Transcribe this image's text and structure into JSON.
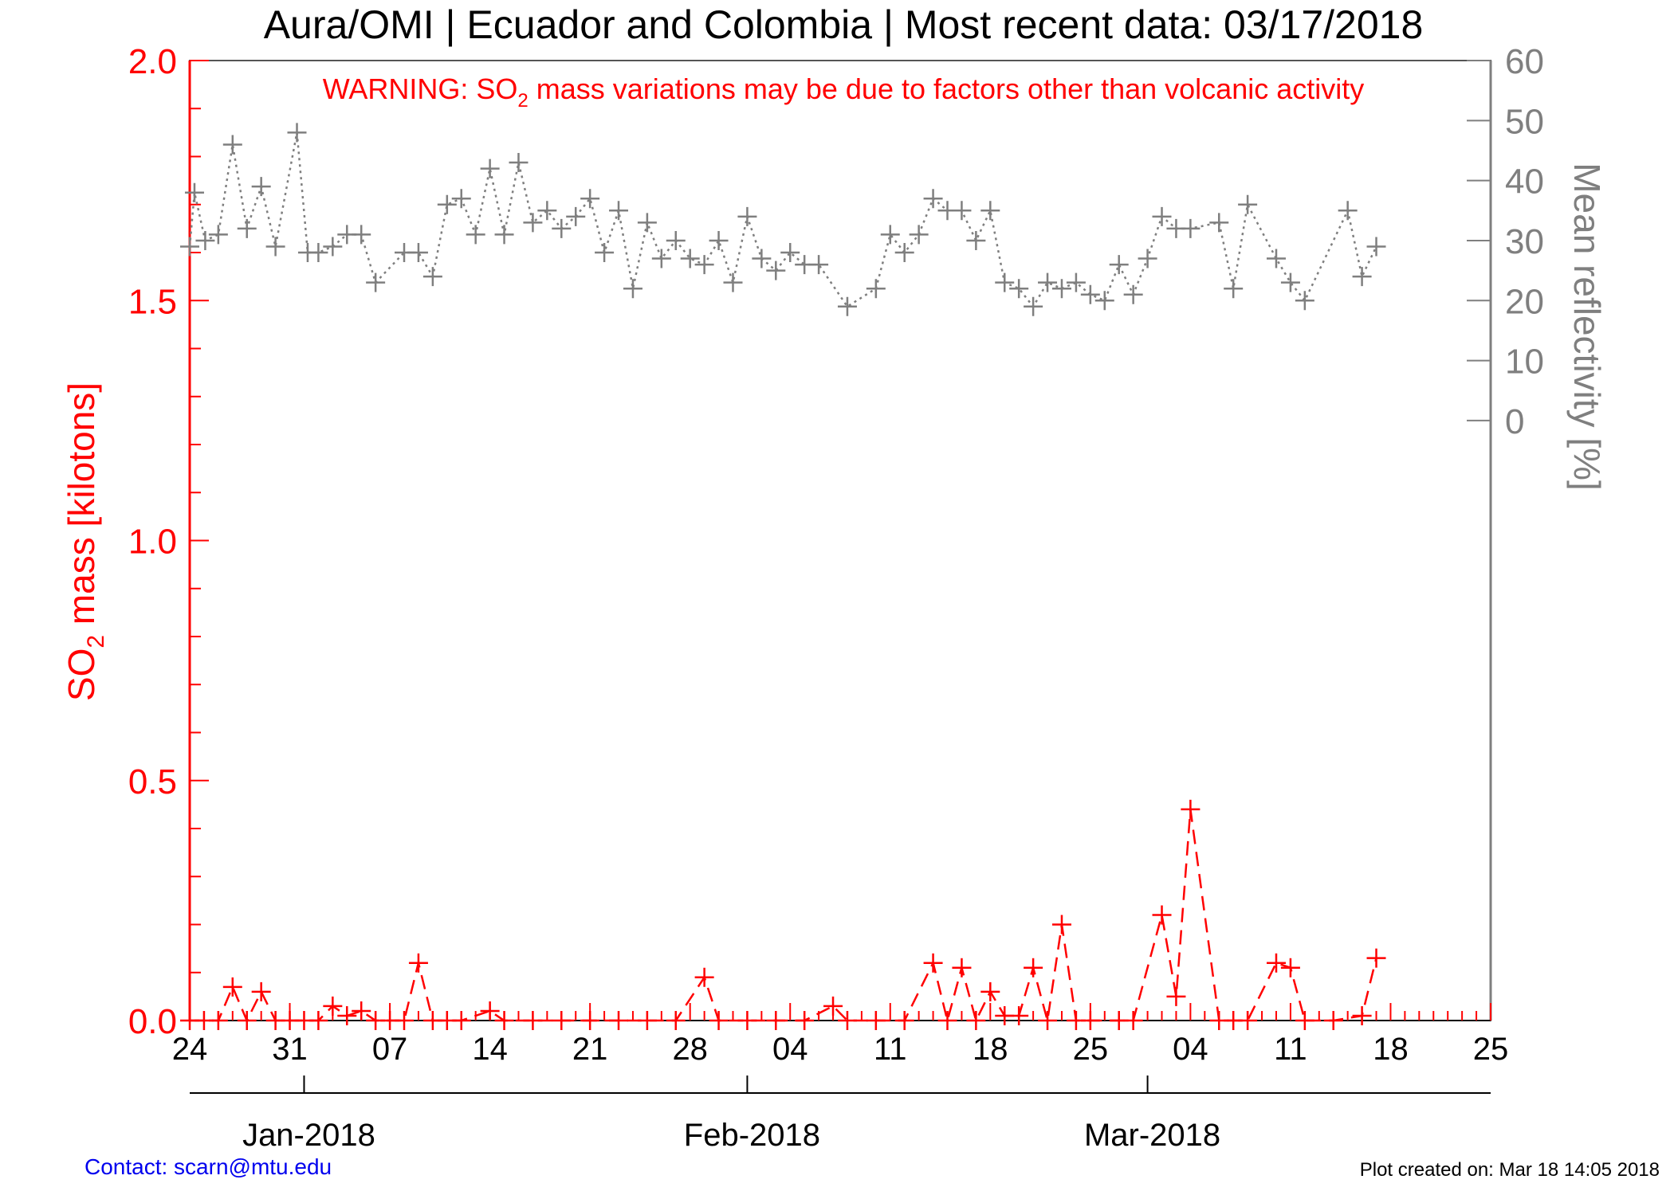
{
  "chart_data": {
    "type": "line",
    "title": "Aura/OMI | Ecuador and Colombia | Most recent data: 03/17/2018",
    "warning": {
      "prefix": "WARNING: SO",
      "subscript": "2",
      "suffix": " mass variations may be due to factors other than volcanic activity"
    },
    "ylabel_left": {
      "prefix": "SO",
      "subscript": "2",
      "suffix": " mass [kilotons]"
    },
    "ylabel_right": "Mean reflectivity [%]",
    "ylim_left": [
      0,
      2
    ],
    "ylim_right": [
      -100,
      60
    ],
    "x_range": [
      "2017-12-24",
      "2018-03-25"
    ],
    "left_tick_labels": [
      {
        "value": 0.0,
        "label": "0.0"
      },
      {
        "value": 0.5,
        "label": "0.5"
      },
      {
        "value": 1.0,
        "label": "1.0"
      },
      {
        "value": 1.5,
        "label": "1.5"
      },
      {
        "value": 2.0,
        "label": "2.0"
      }
    ],
    "right_tick_labels": [
      {
        "value": 0,
        "label": "0"
      },
      {
        "value": 10,
        "label": "10"
      },
      {
        "value": 20,
        "label": "20"
      },
      {
        "value": 30,
        "label": "30"
      },
      {
        "value": 40,
        "label": "40"
      },
      {
        "value": 50,
        "label": "50"
      },
      {
        "value": 60,
        "label": "60"
      }
    ],
    "x_day_ticks": [
      {
        "date": "2017-12-24",
        "label": "24"
      },
      {
        "date": "2017-12-31",
        "label": "31"
      },
      {
        "date": "2018-01-07",
        "label": "07"
      },
      {
        "date": "2018-01-14",
        "label": "14"
      },
      {
        "date": "2018-01-21",
        "label": "21"
      },
      {
        "date": "2018-01-28",
        "label": "28"
      },
      {
        "date": "2018-02-04",
        "label": "04"
      },
      {
        "date": "2018-02-11",
        "label": "11"
      },
      {
        "date": "2018-02-18",
        "label": "18"
      },
      {
        "date": "2018-02-25",
        "label": "25"
      },
      {
        "date": "2018-03-04",
        "label": "04"
      },
      {
        "date": "2018-03-11",
        "label": "11"
      },
      {
        "date": "2018-03-18",
        "label": "18"
      },
      {
        "date": "2018-03-25",
        "label": "25"
      }
    ],
    "x_month_ticks": [
      {
        "date": "2018-01-01",
        "label": "Jan-2018"
      },
      {
        "date": "2018-02-01",
        "label": "Feb-2018"
      },
      {
        "date": "2018-03-01",
        "label": "Mar-2018"
      }
    ],
    "series": [
      {
        "axis": "right",
        "color": "#7f7f7f",
        "line": "dotted",
        "marker": "plus",
        "points": [
          [
            "2017-12-24T00:00",
            29
          ],
          [
            "2017-12-24T08:00",
            38
          ],
          [
            "2017-12-25T02:00",
            30
          ],
          [
            "2017-12-26T00:00",
            31
          ],
          [
            "2017-12-27T00:00",
            46
          ],
          [
            "2017-12-28T00:00",
            32
          ],
          [
            "2017-12-29T00:00",
            39
          ],
          [
            "2017-12-30T00:00",
            29
          ],
          [
            "2017-12-31T12:00",
            48
          ],
          [
            "2018-01-01T06:00",
            28
          ],
          [
            "2018-01-02T00:00",
            28
          ],
          [
            "2018-01-03T00:00",
            29
          ],
          [
            "2018-01-04T00:00",
            31
          ],
          [
            "2018-01-05T00:00",
            31
          ],
          [
            "2018-01-06T00:00",
            23
          ],
          [
            "2018-01-08T00:00",
            28
          ],
          [
            "2018-01-09T00:00",
            28
          ],
          [
            "2018-01-10T00:00",
            24
          ],
          [
            "2018-01-11T00:00",
            36
          ],
          [
            "2018-01-12T00:00",
            37
          ],
          [
            "2018-01-13T00:00",
            31
          ],
          [
            "2018-01-14T00:00",
            42
          ],
          [
            "2018-01-15T00:00",
            31
          ],
          [
            "2018-01-16T00:00",
            43
          ],
          [
            "2018-01-17T00:00",
            33
          ],
          [
            "2018-01-18T00:00",
            35
          ],
          [
            "2018-01-19T00:00",
            32
          ],
          [
            "2018-01-20T00:00",
            34
          ],
          [
            "2018-01-21T00:00",
            37
          ],
          [
            "2018-01-22T00:00",
            28
          ],
          [
            "2018-01-23T00:00",
            35
          ],
          [
            "2018-01-24T00:00",
            22
          ],
          [
            "2018-01-25T00:00",
            33
          ],
          [
            "2018-01-26T00:00",
            27
          ],
          [
            "2018-01-27T00:00",
            30
          ],
          [
            "2018-01-28T00:00",
            27
          ],
          [
            "2018-01-29T00:00",
            26
          ],
          [
            "2018-01-30T00:00",
            30
          ],
          [
            "2018-01-31T00:00",
            23
          ],
          [
            "2018-02-01T00:00",
            34
          ],
          [
            "2018-02-02T00:00",
            27
          ],
          [
            "2018-02-03T00:00",
            25
          ],
          [
            "2018-02-04T00:00",
            28
          ],
          [
            "2018-02-05T00:00",
            26
          ],
          [
            "2018-02-06T00:00",
            26
          ],
          [
            "2018-02-08T00:00",
            19
          ],
          [
            "2018-02-10T00:00",
            22
          ],
          [
            "2018-02-11T00:00",
            31
          ],
          [
            "2018-02-12T00:00",
            28
          ],
          [
            "2018-02-13T00:00",
            31
          ],
          [
            "2018-02-14T00:00",
            37
          ],
          [
            "2018-02-15T00:00",
            35
          ],
          [
            "2018-02-16T00:00",
            35
          ],
          [
            "2018-02-17T00:00",
            30
          ],
          [
            "2018-02-18T00:00",
            35
          ],
          [
            "2018-02-19T00:00",
            23
          ],
          [
            "2018-02-20T00:00",
            22
          ],
          [
            "2018-02-21T00:00",
            19
          ],
          [
            "2018-02-22T00:00",
            23
          ],
          [
            "2018-02-23T00:00",
            22
          ],
          [
            "2018-02-24T00:00",
            23
          ],
          [
            "2018-02-25T00:00",
            21
          ],
          [
            "2018-02-26T00:00",
            20
          ],
          [
            "2018-02-27T00:00",
            26
          ],
          [
            "2018-02-28T00:00",
            21
          ],
          [
            "2018-03-01T00:00",
            27
          ],
          [
            "2018-03-02T00:00",
            34
          ],
          [
            "2018-03-03T00:00",
            32
          ],
          [
            "2018-03-04T00:00",
            32
          ],
          [
            "2018-03-06T00:00",
            33
          ],
          [
            "2018-03-07T00:00",
            22
          ],
          [
            "2018-03-08T00:00",
            36
          ],
          [
            "2018-03-10T00:00",
            27
          ],
          [
            "2018-03-11T00:00",
            23
          ],
          [
            "2018-03-12T00:00",
            20
          ],
          [
            "2018-03-15T00:00",
            35
          ],
          [
            "2018-03-16T00:00",
            24
          ],
          [
            "2018-03-17T00:00",
            29
          ]
        ]
      },
      {
        "axis": "left",
        "color": "#ff0000",
        "line": "dashed",
        "marker": "plus",
        "points": [
          [
            "2017-12-24T00:00",
            0.0
          ],
          [
            "2017-12-25T00:00",
            0.0
          ],
          [
            "2017-12-26T00:00",
            0.0
          ],
          [
            "2017-12-27T00:00",
            0.07
          ],
          [
            "2017-12-28T00:00",
            0.0
          ],
          [
            "2017-12-29T00:00",
            0.06
          ],
          [
            "2017-12-30T00:00",
            0.0
          ],
          [
            "2017-12-31T00:00",
            0.0
          ],
          [
            "2018-01-01T00:00",
            0.0
          ],
          [
            "2018-01-02T00:00",
            0.0
          ],
          [
            "2018-01-03T00:00",
            0.03
          ],
          [
            "2018-01-04T00:00",
            0.01
          ],
          [
            "2018-01-05T00:00",
            0.02
          ],
          [
            "2018-01-06T00:00",
            0.0
          ],
          [
            "2018-01-07T00:00",
            0.0
          ],
          [
            "2018-01-08T00:00",
            0.0
          ],
          [
            "2018-01-09T00:00",
            0.12
          ],
          [
            "2018-01-10T00:00",
            0.0
          ],
          [
            "2018-01-11T00:00",
            0.0
          ],
          [
            "2018-01-12T00:00",
            0.0
          ],
          [
            "2018-01-14T00:00",
            0.02
          ],
          [
            "2018-01-15T00:00",
            0.0
          ],
          [
            "2018-01-17T00:00",
            0.0
          ],
          [
            "2018-01-19T00:00",
            0.0
          ],
          [
            "2018-01-21T00:00",
            0.0
          ],
          [
            "2018-01-23T00:00",
            0.0
          ],
          [
            "2018-01-25T00:00",
            0.0
          ],
          [
            "2018-01-27T00:00",
            0.0
          ],
          [
            "2018-01-29T00:00",
            0.09
          ],
          [
            "2018-01-30T00:00",
            0.0
          ],
          [
            "2018-02-01T00:00",
            0.0
          ],
          [
            "2018-02-03T00:00",
            0.0
          ],
          [
            "2018-02-05T00:00",
            0.0
          ],
          [
            "2018-02-07T00:00",
            0.03
          ],
          [
            "2018-02-08T00:00",
            0.0
          ],
          [
            "2018-02-10T00:00",
            0.0
          ],
          [
            "2018-02-12T00:00",
            0.0
          ],
          [
            "2018-02-14T00:00",
            0.12
          ],
          [
            "2018-02-15T00:00",
            0.0
          ],
          [
            "2018-02-16T00:00",
            0.11
          ],
          [
            "2018-02-17T00:00",
            0.0
          ],
          [
            "2018-02-18T00:00",
            0.06
          ],
          [
            "2018-02-19T00:00",
            0.01
          ],
          [
            "2018-02-20T00:00",
            0.01
          ],
          [
            "2018-02-21T00:00",
            0.11
          ],
          [
            "2018-02-22T00:00",
            0.0
          ],
          [
            "2018-02-23T00:00",
            0.2
          ],
          [
            "2018-02-24T00:00",
            0.0
          ],
          [
            "2018-02-25T00:00",
            0.0
          ],
          [
            "2018-02-27T00:00",
            0.0
          ],
          [
            "2018-02-28T00:00",
            0.0
          ],
          [
            "2018-03-02T00:00",
            0.22
          ],
          [
            "2018-03-03T00:00",
            0.05
          ],
          [
            "2018-03-04T00:00",
            0.44
          ],
          [
            "2018-03-06T00:00",
            0.0
          ],
          [
            "2018-03-07T00:00",
            0.0
          ],
          [
            "2018-03-08T00:00",
            0.0
          ],
          [
            "2018-03-10T00:00",
            0.12
          ],
          [
            "2018-03-11T00:00",
            0.11
          ],
          [
            "2018-03-12T00:00",
            0.0
          ],
          [
            "2018-03-14T00:00",
            0.0
          ],
          [
            "2018-03-16T00:00",
            0.01
          ],
          [
            "2018-03-17T00:00",
            0.13
          ]
        ]
      }
    ]
  },
  "footer": {
    "contact": "Contact: scarn@mtu.edu",
    "created": "Plot created on: Mar 18 14:05 2018"
  }
}
